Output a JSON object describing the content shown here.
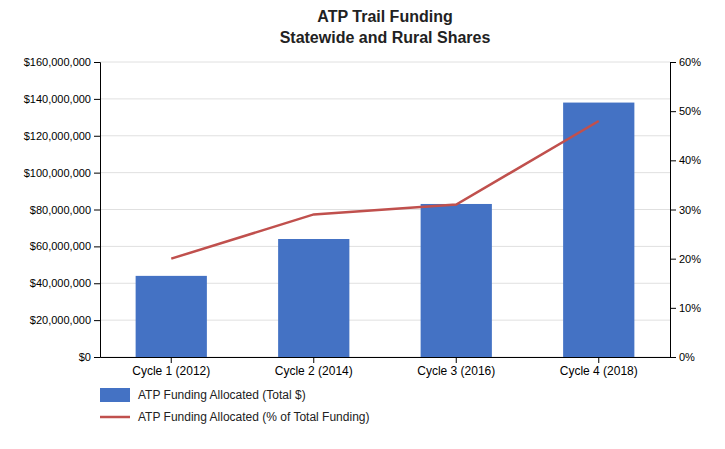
{
  "chart_data": {
    "type": "bar",
    "title": "ATP Trail Funding",
    "subtitle": "Statewide and Rural Shares",
    "categories": [
      "Cycle 1 (2012)",
      "Cycle 2 (2014)",
      "Cycle 3 (2016)",
      "Cycle 4 (2018)"
    ],
    "series": [
      {
        "name": "ATP Funding Allocated (Total $)",
        "type": "bar",
        "color": "#4472C4",
        "values": [
          44000000,
          64000000,
          83000000,
          138000000
        ]
      },
      {
        "name": "ATP Funding Allocated (% of Total Funding)",
        "type": "line",
        "color": "#C0504D",
        "axis": "y2",
        "values": [
          0.2,
          0.29,
          0.31,
          0.48
        ]
      }
    ],
    "ylim": [
      0,
      160000000
    ],
    "yticks": [
      {
        "value": 0,
        "label": "$0"
      },
      {
        "value": 20000000,
        "label": "$20,000,000"
      },
      {
        "value": 40000000,
        "label": "$40,000,000"
      },
      {
        "value": 60000000,
        "label": "$60,000,000"
      },
      {
        "value": 80000000,
        "label": "$80,000,000"
      },
      {
        "value": 100000000,
        "label": "$100,000,000"
      },
      {
        "value": 120000000,
        "label": "$120,000,000"
      },
      {
        "value": 140000000,
        "label": "$140,000,000"
      },
      {
        "value": 160000000,
        "label": "$160,000,000"
      }
    ],
    "y2lim": [
      0,
      0.6
    ],
    "y2ticks": [
      {
        "value": 0.0,
        "label": "0%"
      },
      {
        "value": 0.1,
        "label": "10%"
      },
      {
        "value": 0.2,
        "label": "20%"
      },
      {
        "value": 0.3,
        "label": "30%"
      },
      {
        "value": 0.4,
        "label": "40%"
      },
      {
        "value": 0.5,
        "label": "50%"
      },
      {
        "value": 0.6,
        "label": "60%"
      }
    ],
    "grid": true,
    "legend": "bottom-left"
  }
}
